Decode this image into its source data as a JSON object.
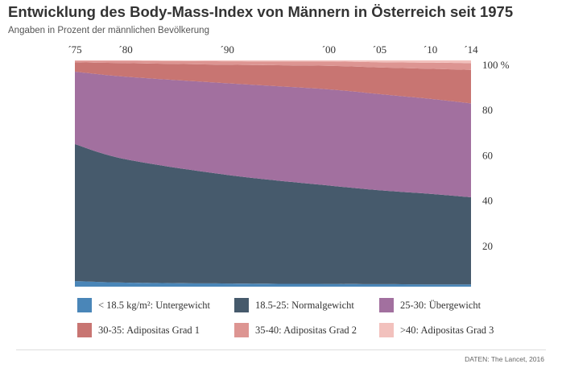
{
  "title": "Entwicklung des Body-Mass-Index von Männern in Österreich seit 1975",
  "subtitle": "Angaben in Prozent der männlichen Bevölkerung",
  "source": "DATEN: The Lancet, 2016",
  "chart_data": {
    "type": "area",
    "stacked": true,
    "x": [
      1975,
      1980,
      1990,
      2000,
      2005,
      2010,
      2014
    ],
    "x_tick_labels": [
      "´75",
      "´80",
      "´90",
      "´00",
      "´05",
      "´10",
      "´14"
    ],
    "y_tick_labels": [
      "100 %",
      "80",
      "60",
      "40",
      "20"
    ],
    "y_ticks": [
      100,
      80,
      60,
      40,
      20
    ],
    "ylim": [
      0,
      100
    ],
    "grid": false,
    "legend_position": "bottom",
    "series": [
      {
        "name": "< 18.5 kg/m²: Untergewicht",
        "color": "#4a86b8",
        "values": [
          2.5,
          1.8,
          1.4,
          1.2,
          1.1,
          1.0,
          1.0
        ]
      },
      {
        "name": "18.5-25: Normalgewicht",
        "color": "#465a6c",
        "values": [
          60.5,
          54.5,
          48.0,
          43.5,
          41.5,
          40.0,
          38.5
        ]
      },
      {
        "name": "25-30: Übergewicht",
        "color": "#a2709f",
        "values": [
          32.0,
          36.5,
          40.5,
          42.5,
          42.5,
          42.0,
          41.5
        ]
      },
      {
        "name": "30-35: Adipositas Grad 1",
        "color": "#c87572",
        "values": [
          4.2,
          6.0,
          8.2,
          10.4,
          11.8,
          13.3,
          14.8
        ]
      },
      {
        "name": "35-40: Adipositas Grad 2",
        "color": "#dd9592",
        "values": [
          0.6,
          1.0,
          1.5,
          1.9,
          2.3,
          2.7,
          3.0
        ]
      },
      {
        "name": ">40: Adipositas Grad 3",
        "color": "#f2c1bd",
        "values": [
          0.2,
          0.2,
          0.4,
          0.5,
          0.8,
          1.0,
          1.2
        ]
      }
    ]
  }
}
